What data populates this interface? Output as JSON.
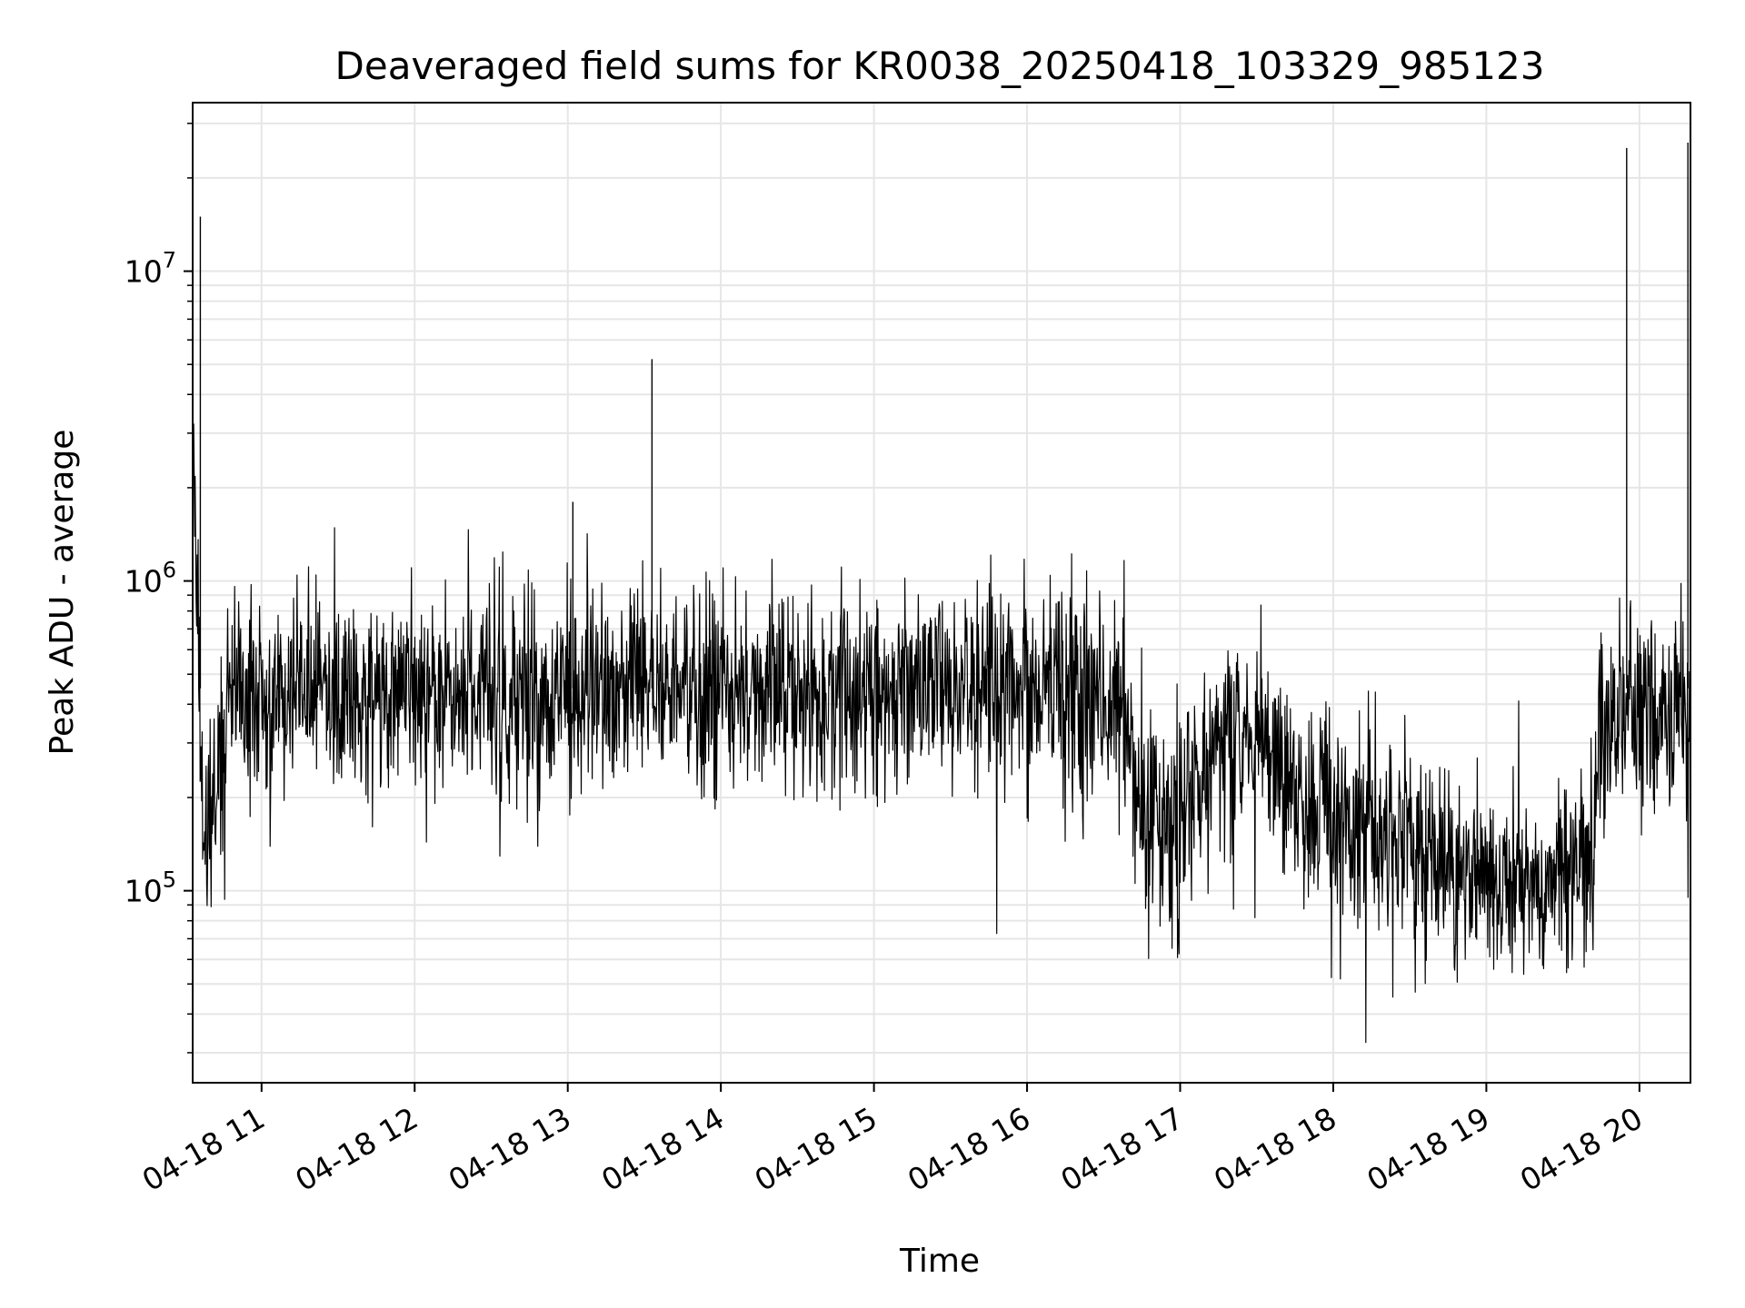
{
  "chart_data": {
    "type": "line",
    "title": "Deaveraged field sums for KR0038_20250418_103329_985123",
    "xlabel": "Time",
    "ylabel": "Peak ADU - average",
    "yscale": "log",
    "ylim": [
      24000,
      35000000
    ],
    "xlim": [
      "2025-04-18 10:33",
      "2025-04-18 20:20"
    ],
    "grid": true,
    "colors": {
      "line": "#000000",
      "grid": "#e6e6e6",
      "axes": "#000000"
    },
    "x_ticks": [
      {
        "at": "2025-04-18 11:00",
        "label": "04-18 11"
      },
      {
        "at": "2025-04-18 12:00",
        "label": "04-18 12"
      },
      {
        "at": "2025-04-18 13:00",
        "label": "04-18 13"
      },
      {
        "at": "2025-04-18 14:00",
        "label": "04-18 14"
      },
      {
        "at": "2025-04-18 15:00",
        "label": "04-18 15"
      },
      {
        "at": "2025-04-18 16:00",
        "label": "04-18 16"
      },
      {
        "at": "2025-04-18 17:00",
        "label": "04-18 17"
      },
      {
        "at": "2025-04-18 18:00",
        "label": "04-18 18"
      },
      {
        "at": "2025-04-18 19:00",
        "label": "04-18 19"
      },
      {
        "at": "2025-04-18 20:00",
        "label": "04-18 20"
      }
    ],
    "y_ticks": [
      {
        "value": 100000,
        "base": "10",
        "exp": "5"
      },
      {
        "value": 1000000,
        "base": "10",
        "exp": "6"
      },
      {
        "value": 10000000,
        "base": "10",
        "exp": "7"
      }
    ],
    "series": [
      {
        "x": [
          "2025-04-18 10:33",
          "2025-04-18 10:34",
          "2025-04-18 10:35",
          "2025-04-18 10:36",
          "2025-04-18 10:37",
          "2025-04-18 10:38",
          "2025-04-18 10:40",
          "2025-04-18 10:42",
          "2025-04-18 10:44",
          "2025-04-18 10:46",
          "2025-04-18 10:48",
          "2025-04-18 10:50",
          "2025-04-18 10:52",
          "2025-04-18 10:55",
          "2025-04-18 11:00",
          "2025-04-18 11:15",
          "2025-04-18 11:30",
          "2025-04-18 11:45",
          "2025-04-18 12:00",
          "2025-04-18 12:15",
          "2025-04-18 12:30",
          "2025-04-18 12:45",
          "2025-04-18 13:00",
          "2025-04-18 13:15",
          "2025-04-18 13:30",
          "2025-04-18 13:45",
          "2025-04-18 14:00",
          "2025-04-18 14:15",
          "2025-04-18 14:30",
          "2025-04-18 14:45",
          "2025-04-18 15:00",
          "2025-04-18 15:15",
          "2025-04-18 15:30",
          "2025-04-18 15:45",
          "2025-04-18 16:00",
          "2025-04-18 16:15",
          "2025-04-18 16:30",
          "2025-04-18 16:38",
          "2025-04-18 16:45",
          "2025-04-18 17:00",
          "2025-04-18 17:15",
          "2025-04-18 17:30",
          "2025-04-18 17:45",
          "2025-04-18 18:00",
          "2025-04-18 18:15",
          "2025-04-18 18:30",
          "2025-04-18 18:45",
          "2025-04-18 19:00",
          "2025-04-18 19:15",
          "2025-04-18 19:30",
          "2025-04-18 19:40",
          "2025-04-18 19:45",
          "2025-04-18 19:55",
          "2025-04-18 20:05",
          "2025-04-18 20:15",
          "2025-04-18 20:20"
        ],
        "y": [
          3000000,
          1500000,
          800000,
          350000,
          200000,
          150000,
          180000,
          200000,
          250000,
          300000,
          400000,
          500000,
          550000,
          450000,
          420000,
          430000,
          430000,
          420000,
          430000,
          440000,
          440000,
          440000,
          450000,
          430000,
          440000,
          440000,
          440000,
          430000,
          430000,
          420000,
          440000,
          440000,
          440000,
          440000,
          440000,
          430000,
          420000,
          400000,
          180000,
          170000,
          280000,
          300000,
          200000,
          180000,
          160000,
          140000,
          120000,
          110000,
          110000,
          105000,
          110000,
          350000,
          380000,
          380000,
          400000,
          400000
        ]
      }
    ],
    "spikes": [
      {
        "x": "2025-04-18 10:36",
        "y": 15000000
      },
      {
        "x": "2025-04-18 13:02",
        "y": 1800000
      },
      {
        "x": "2025-04-18 13:33",
        "y": 5200000
      },
      {
        "x": "2025-04-18 19:55",
        "y": 25000000
      },
      {
        "x": "2025-04-18 20:19",
        "y": 26000000
      }
    ]
  }
}
